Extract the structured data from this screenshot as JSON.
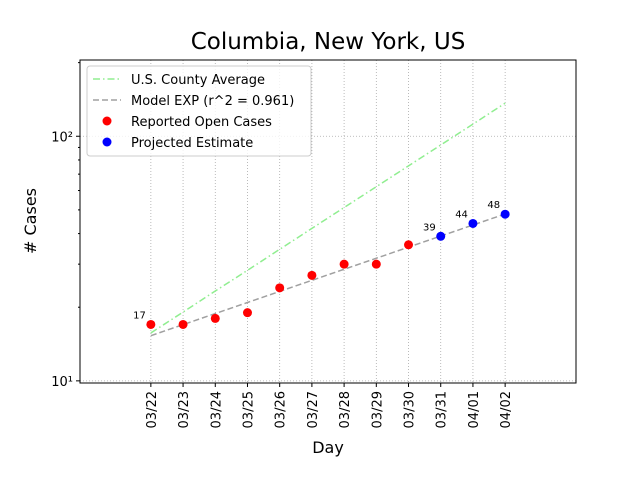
{
  "chart_data": {
    "type": "line",
    "title": "Columbia, New York, US",
    "x_label": "Day",
    "y_label": "# Cases",
    "categories": [
      "03/22",
      "03/23",
      "03/24",
      "03/25",
      "03/26",
      "03/27",
      "03/28",
      "03/29",
      "03/30",
      "03/31",
      "04/01",
      "04/02"
    ],
    "xlim": [
      -2.2,
      13.2
    ],
    "ylim": [
      9.8,
      205
    ],
    "log_y": true,
    "yticks": [
      {
        "value": 10,
        "label": "10¹"
      },
      {
        "value": 100,
        "label": "10²"
      }
    ],
    "grid": true,
    "legend": "upper left",
    "series": [
      {
        "name": "U.S. County Average",
        "color": "#90ee90",
        "style": "dashdot",
        "values": [
          15.7,
          19.1,
          23.3,
          28.3,
          34.5,
          42.0,
          51.1,
          62.2,
          75.7,
          92.1,
          112.1,
          136.5
        ]
      },
      {
        "name": "Model EXP (r^2 = 0.961)",
        "color": "#a0a0a0",
        "style": "dashed",
        "values": [
          15.3,
          16.98,
          18.84,
          20.91,
          23.21,
          25.76,
          28.59,
          31.72,
          35.21,
          39.07,
          43.36,
          48.1
        ]
      },
      {
        "name": "Reported Open Cases",
        "color": "#ff0000",
        "style": "marker",
        "values": [
          17,
          17,
          18,
          19,
          24,
          27,
          30,
          30,
          36,
          null,
          null,
          null
        ],
        "value_labels": [
          "17",
          null,
          null,
          null,
          null,
          null,
          null,
          null,
          null,
          null,
          null,
          null
        ]
      },
      {
        "name": "Projected Estimate",
        "color": "#0000ff",
        "style": "marker",
        "values": [
          null,
          null,
          null,
          null,
          null,
          null,
          null,
          null,
          null,
          39,
          44,
          48
        ],
        "value_labels": [
          null,
          null,
          null,
          null,
          null,
          null,
          null,
          null,
          null,
          "39",
          "44",
          "48"
        ]
      }
    ]
  }
}
